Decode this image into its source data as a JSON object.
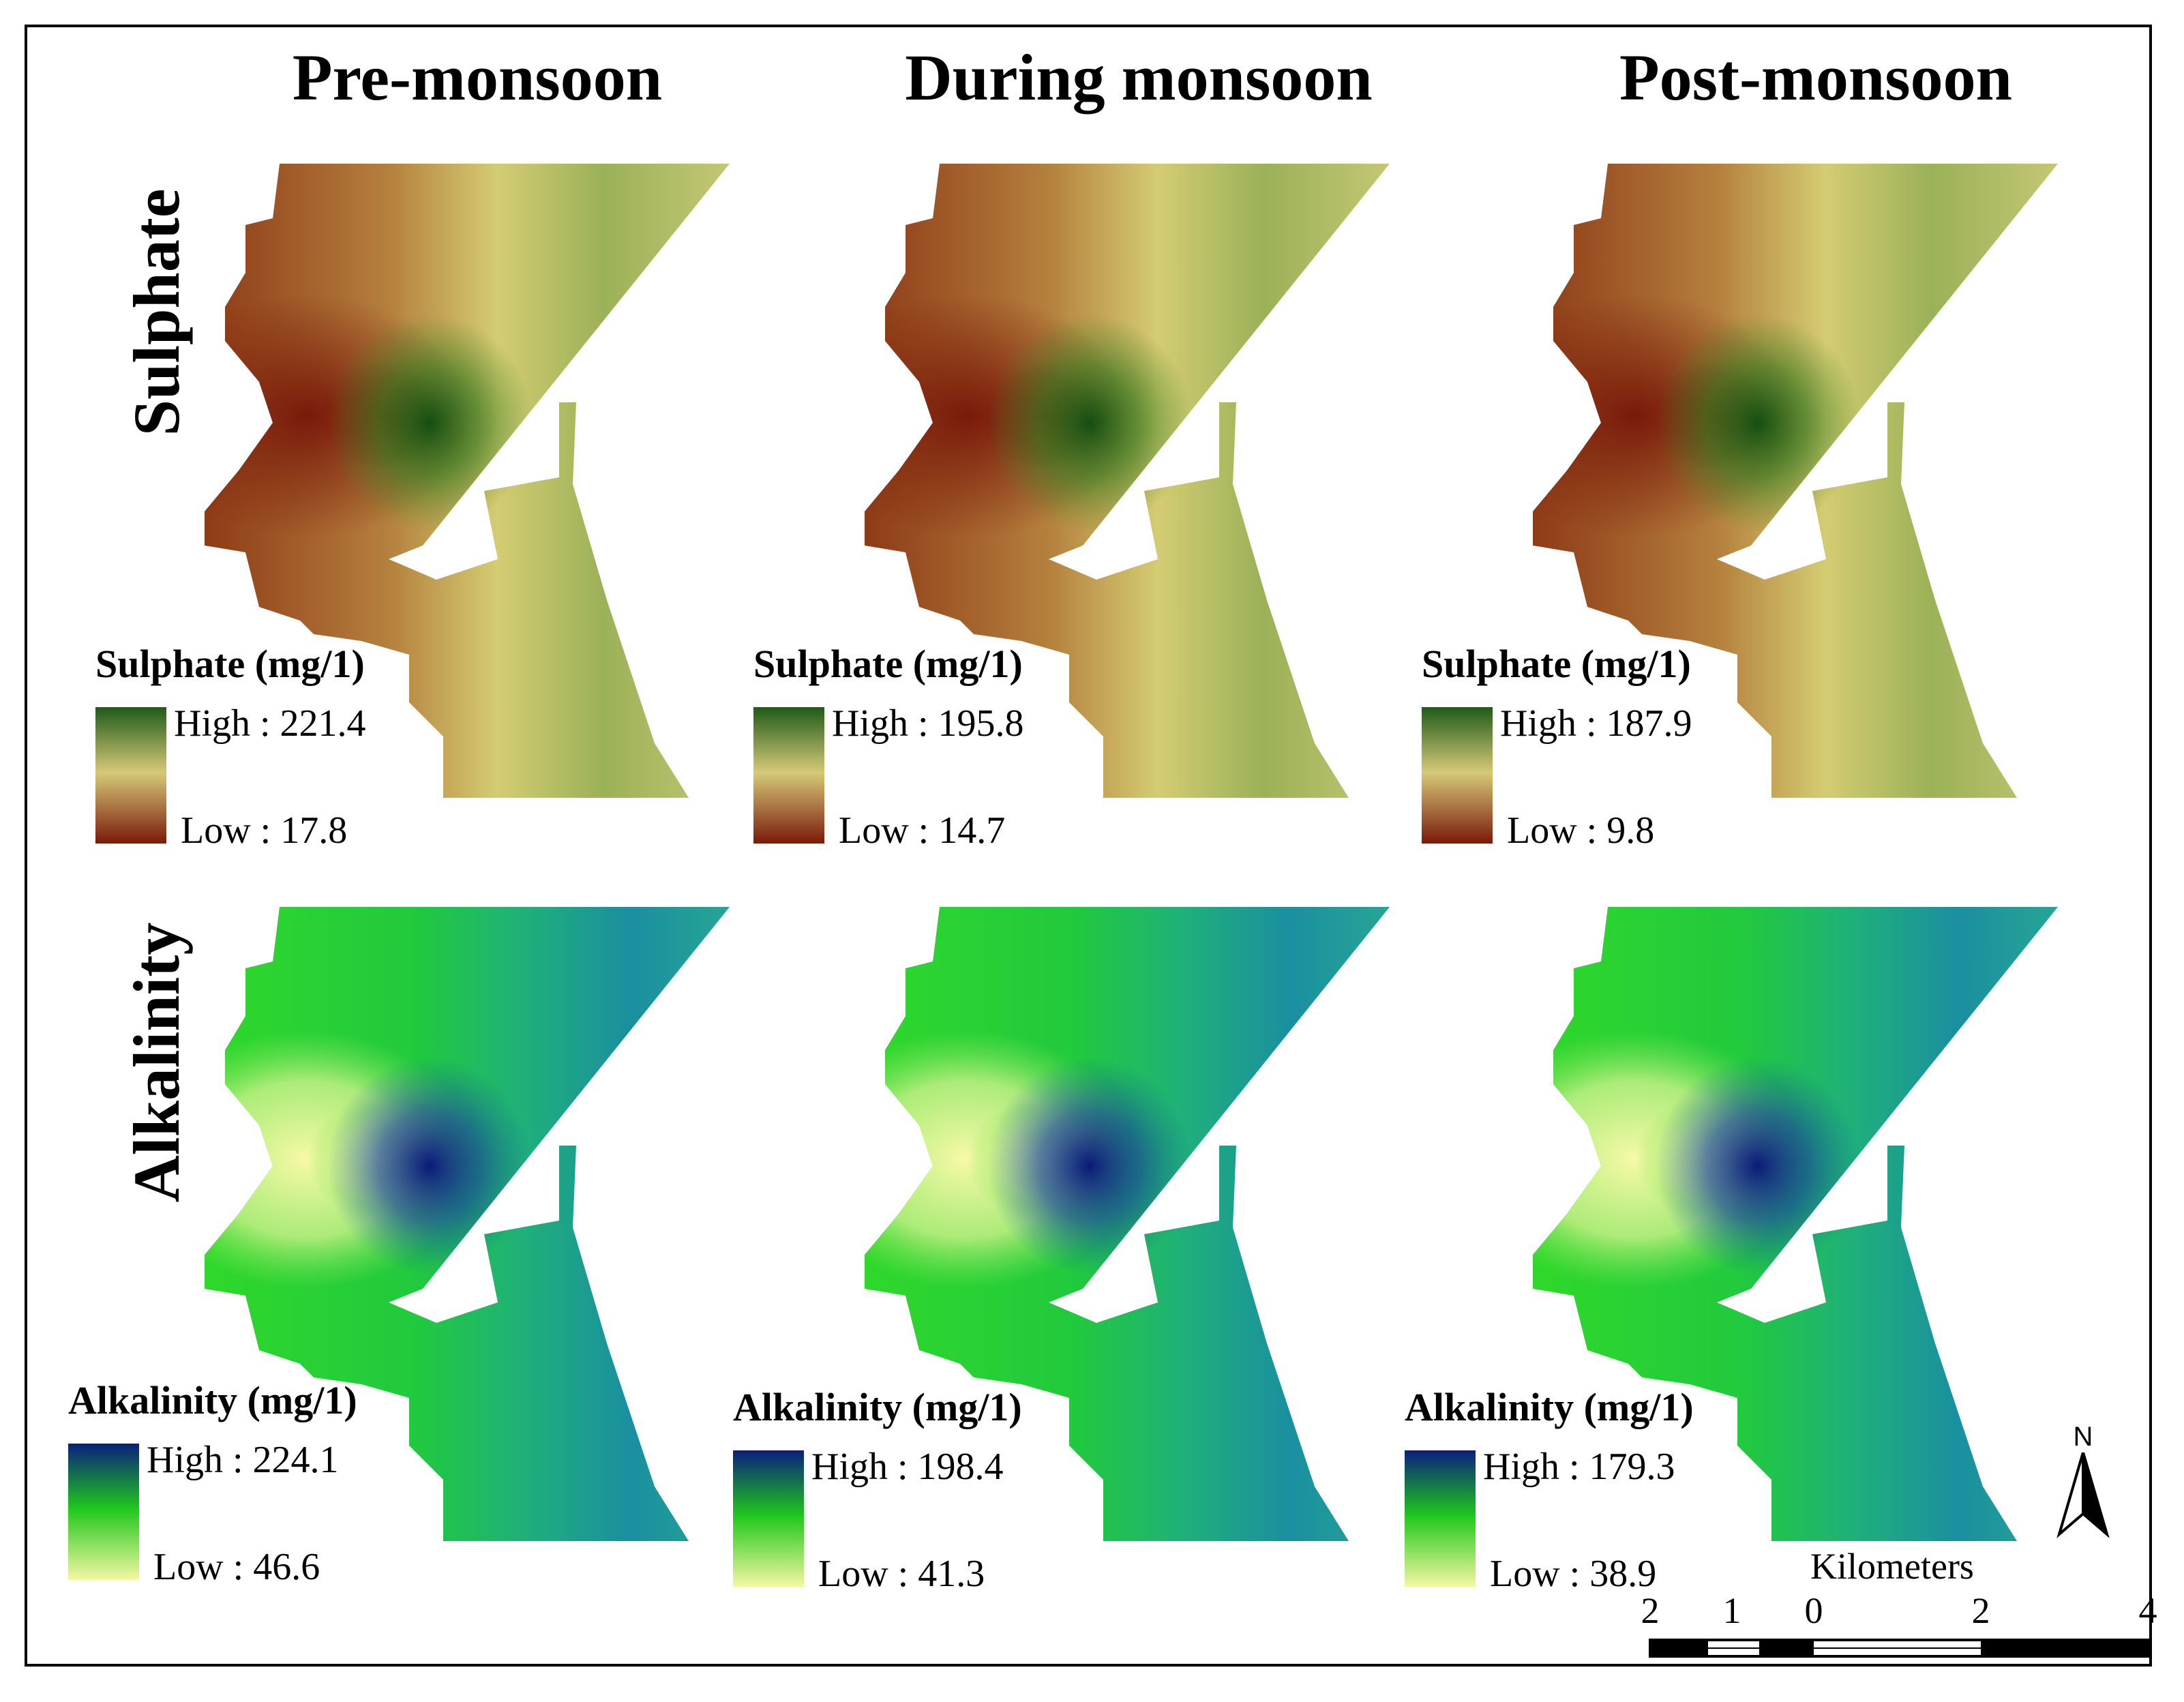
{
  "columns": [
    "Pre-monsoon",
    "During monsoon",
    "Post-monsoon"
  ],
  "rows": [
    "Sulphate",
    "Alkalinity"
  ],
  "legends": {
    "sulphate": {
      "title": "Sulphate (mg/1)",
      "colors": {
        "high": "#1f5a19",
        "mid": "#d6c978",
        "low": "#7a1a0a"
      },
      "panels": [
        {
          "high": "High : 221.4",
          "low": "Low : 17.8"
        },
        {
          "high": "High : 195.8",
          "low": "Low : 14.7"
        },
        {
          "high": "High : 187.9",
          "low": "Low : 9.8"
        }
      ]
    },
    "alkalinity": {
      "title": "Alkalinity (mg/1)",
      "colors": {
        "high": "#0a1f7c",
        "mid": "#20c81c",
        "low": "#f4f7a2"
      },
      "panels": [
        {
          "high": "High : 224.1",
          "low": "Low : 46.6"
        },
        {
          "high": "High : 198.4",
          "low": "Low : 41.3"
        },
        {
          "high": "High : 179.3",
          "low": "Low : 38.9"
        }
      ]
    }
  },
  "north_arrow": {
    "label": "N",
    "icon": "north-arrow-icon"
  },
  "scale_bar": {
    "units": "Kilometers",
    "ticks": [
      "2",
      "1",
      "0",
      "2",
      "4"
    ]
  }
}
